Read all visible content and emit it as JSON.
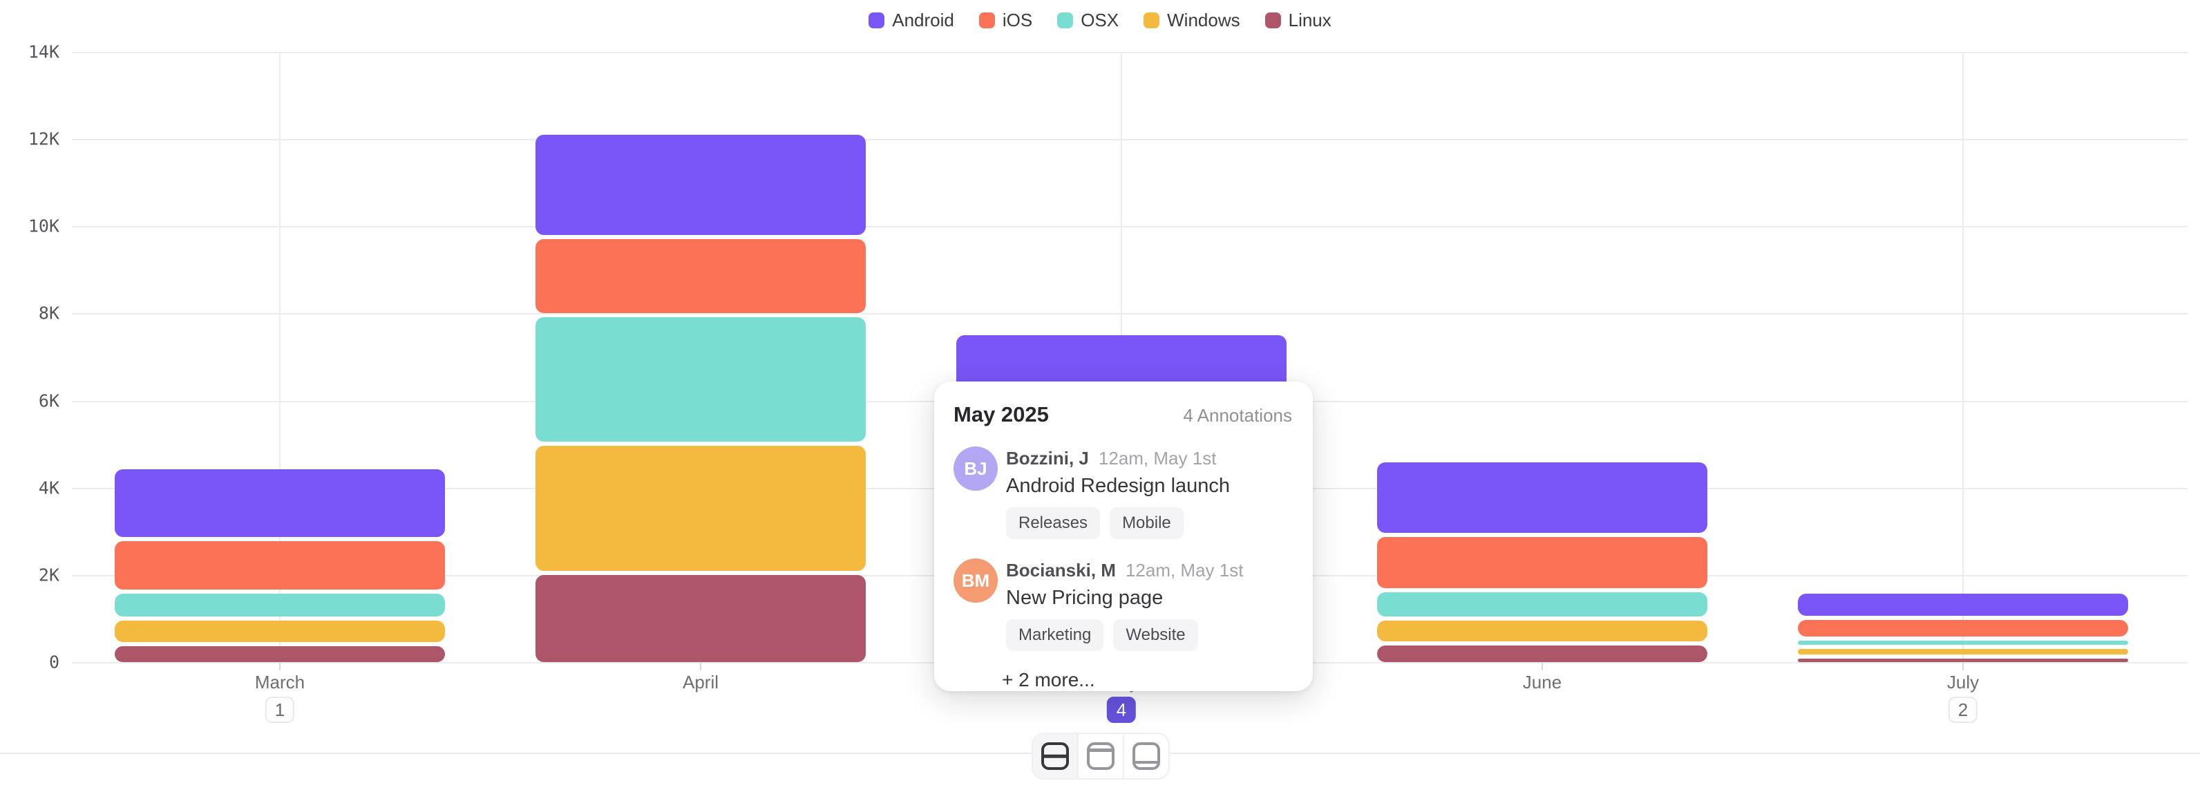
{
  "legend": {
    "items": [
      {
        "label": "Android",
        "color": "#7a55f7"
      },
      {
        "label": "iOS",
        "color": "#fb7257"
      },
      {
        "label": "OSX",
        "color": "#79ded1"
      },
      {
        "label": "Windows",
        "color": "#f4ba3f"
      },
      {
        "label": "Linux",
        "color": "#ad5569"
      }
    ]
  },
  "y_axis": {
    "tick_labels_top_to_bottom": [
      "14K",
      "12K",
      "10K",
      "8K",
      "6K",
      "4K",
      "2K",
      "0"
    ]
  },
  "x_axis": {
    "months": [
      {
        "label": "March",
        "badge": "1",
        "badge_active": false
      },
      {
        "label": "April",
        "badge": null,
        "badge_active": false
      },
      {
        "label": "May",
        "badge": "4",
        "badge_active": true
      },
      {
        "label": "June",
        "badge": null,
        "badge_active": false
      },
      {
        "label": "July",
        "badge": "2",
        "badge_active": false
      }
    ]
  },
  "chart_data": {
    "type": "bar",
    "stacked": true,
    "categories": [
      "March",
      "April",
      "May",
      "June",
      "July"
    ],
    "series": [
      {
        "name": "Android",
        "color": "#7a55f7",
        "values": [
          1650,
          2400,
          1500,
          1700,
          600
        ]
      },
      {
        "name": "iOS",
        "color": "#fb7257",
        "values": [
          1200,
          1800,
          1550,
          1280,
          470
        ]
      },
      {
        "name": "OSX",
        "color": "#79ded1",
        "values": [
          630,
          2950,
          1450,
          650,
          190
        ]
      },
      {
        "name": "Windows",
        "color": "#f4ba3f",
        "values": [
          580,
          2950,
          1100,
          570,
          220
        ]
      },
      {
        "name": "Linux",
        "color": "#ad5569",
        "values": [
          460,
          2100,
          2000,
          470,
          180
        ]
      }
    ],
    "title": "",
    "xlabel": "",
    "ylabel": "",
    "ylim": [
      0,
      14000
    ],
    "y_tick_values": [
      0,
      2000,
      4000,
      6000,
      8000,
      10000,
      12000,
      14000
    ],
    "grid": true,
    "legend_position": "top-center",
    "annotation_badges": [
      {
        "category": "March",
        "count": "1",
        "selected": false
      },
      {
        "category": "May",
        "count": "4",
        "selected": true
      },
      {
        "category": "July",
        "count": "2",
        "selected": false
      }
    ]
  },
  "tooltip": {
    "title": "May 2025",
    "count_label": "4 Annotations",
    "annotations": [
      {
        "initials": "BJ",
        "avatar_color": "#b3a6f3",
        "author": "Bozzini, J",
        "timestamp": "12am, May 1st",
        "text": "Android Redesign launch",
        "tags": [
          "Releases",
          "Mobile"
        ]
      },
      {
        "initials": "BM",
        "avatar_color": "#f49b72",
        "author": "Bocianski, M",
        "timestamp": "12am, May 1st",
        "text": "New Pricing page",
        "tags": [
          "Marketing",
          "Website"
        ]
      }
    ],
    "more_label": "+ 2 more..."
  },
  "view_switcher": {
    "buttons": [
      {
        "name": "split-middle",
        "active": true
      },
      {
        "name": "header-top",
        "active": false
      },
      {
        "name": "footer-bottom",
        "active": false
      }
    ]
  },
  "colors": {
    "active_badge": "#6552dd",
    "gridline": "#ececef",
    "axis_text": "#55555b",
    "month_text": "#6d6d73"
  }
}
